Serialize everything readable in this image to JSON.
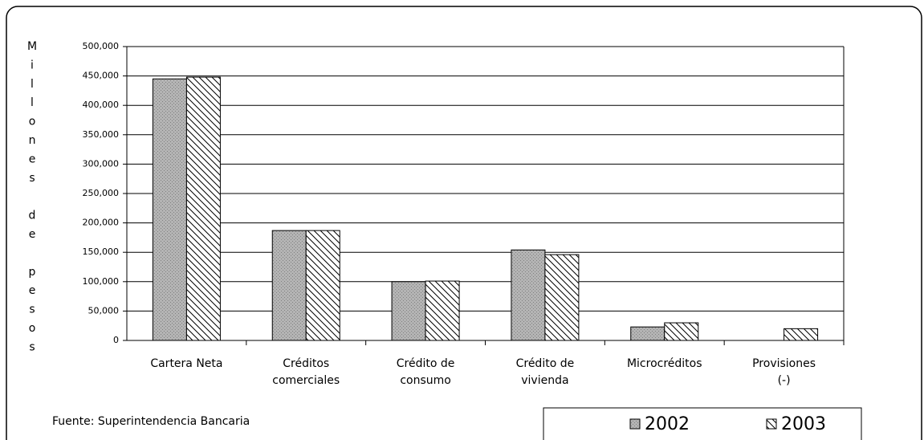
{
  "chart_data": {
    "type": "bar",
    "y_label": "Millones de pesos",
    "source": "Fuente: Superintendencia Bancaria",
    "categories": [
      "Cartera Neta",
      "Créditos\ncomerciales",
      "Crédito de\nconsumo",
      "Crédito de\nvivienda",
      "Microcréditos",
      "Provisiones\n(-)"
    ],
    "series": [
      {
        "name": "2002",
        "color": "#b4b4b4",
        "values": [
          445000,
          187000,
          100000,
          154000,
          23000,
          null
        ]
      },
      {
        "name": "2003",
        "color": "#ffffff",
        "values": [
          448000,
          187000,
          101000,
          146000,
          30000,
          20000
        ]
      }
    ],
    "ylim": [
      0,
      500000
    ],
    "yticks": [
      0,
      {
        "value": 50000,
        "label": "50,000"
      },
      {
        "value": 100000,
        "label": "100,000"
      },
      {
        "value": 150000,
        "label": "150,000"
      },
      {
        "value": 200000,
        "label": "200,000"
      },
      {
        "value": 250000,
        "label": "250,000"
      },
      {
        "value": 300000,
        "label": "300,000"
      },
      {
        "value": 350000,
        "label": "350,000"
      },
      {
        "value": 400000,
        "label": "400,000"
      },
      {
        "value": 450000,
        "label": "450,000"
      },
      {
        "value": 500000,
        "label": "500,000"
      }
    ],
    "grid": true
  }
}
